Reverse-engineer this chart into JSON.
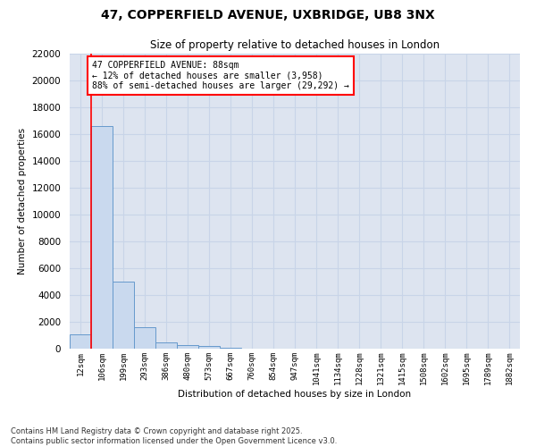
{
  "title_line1": "47, COPPERFIELD AVENUE, UXBRIDGE, UB8 3NX",
  "title_line2": "Size of property relative to detached houses in London",
  "xlabel": "Distribution of detached houses by size in London",
  "ylabel": "Number of detached properties",
  "categories": [
    "12sqm",
    "106sqm",
    "199sqm",
    "293sqm",
    "386sqm",
    "480sqm",
    "573sqm",
    "667sqm",
    "760sqm",
    "854sqm",
    "947sqm",
    "1041sqm",
    "1134sqm",
    "1228sqm",
    "1321sqm",
    "1415sqm",
    "1508sqm",
    "1602sqm",
    "1695sqm",
    "1789sqm",
    "1882sqm"
  ],
  "values": [
    1050,
    16600,
    5000,
    1600,
    450,
    300,
    175,
    90,
    30,
    0,
    0,
    0,
    0,
    0,
    0,
    0,
    0,
    0,
    0,
    0,
    0
  ],
  "bar_color": "#c9d9ee",
  "bar_edge_color": "#6699cc",
  "annotation_text_line1": "47 COPPERFIELD AVENUE: 88sqm",
  "annotation_text_line2": "← 12% of detached houses are smaller (3,958)",
  "annotation_text_line3": "88% of semi-detached houses are larger (29,292) →",
  "annotation_box_color": "white",
  "annotation_box_edge_color": "red",
  "ylim": [
    0,
    22000
  ],
  "yticks": [
    0,
    2000,
    4000,
    6000,
    8000,
    10000,
    12000,
    14000,
    16000,
    18000,
    20000,
    22000
  ],
  "grid_color": "#c8d4e8",
  "background_color": "#dde4f0",
  "footer_line1": "Contains HM Land Registry data © Crown copyright and database right 2025.",
  "footer_line2": "Contains public sector information licensed under the Open Government Licence v3.0."
}
